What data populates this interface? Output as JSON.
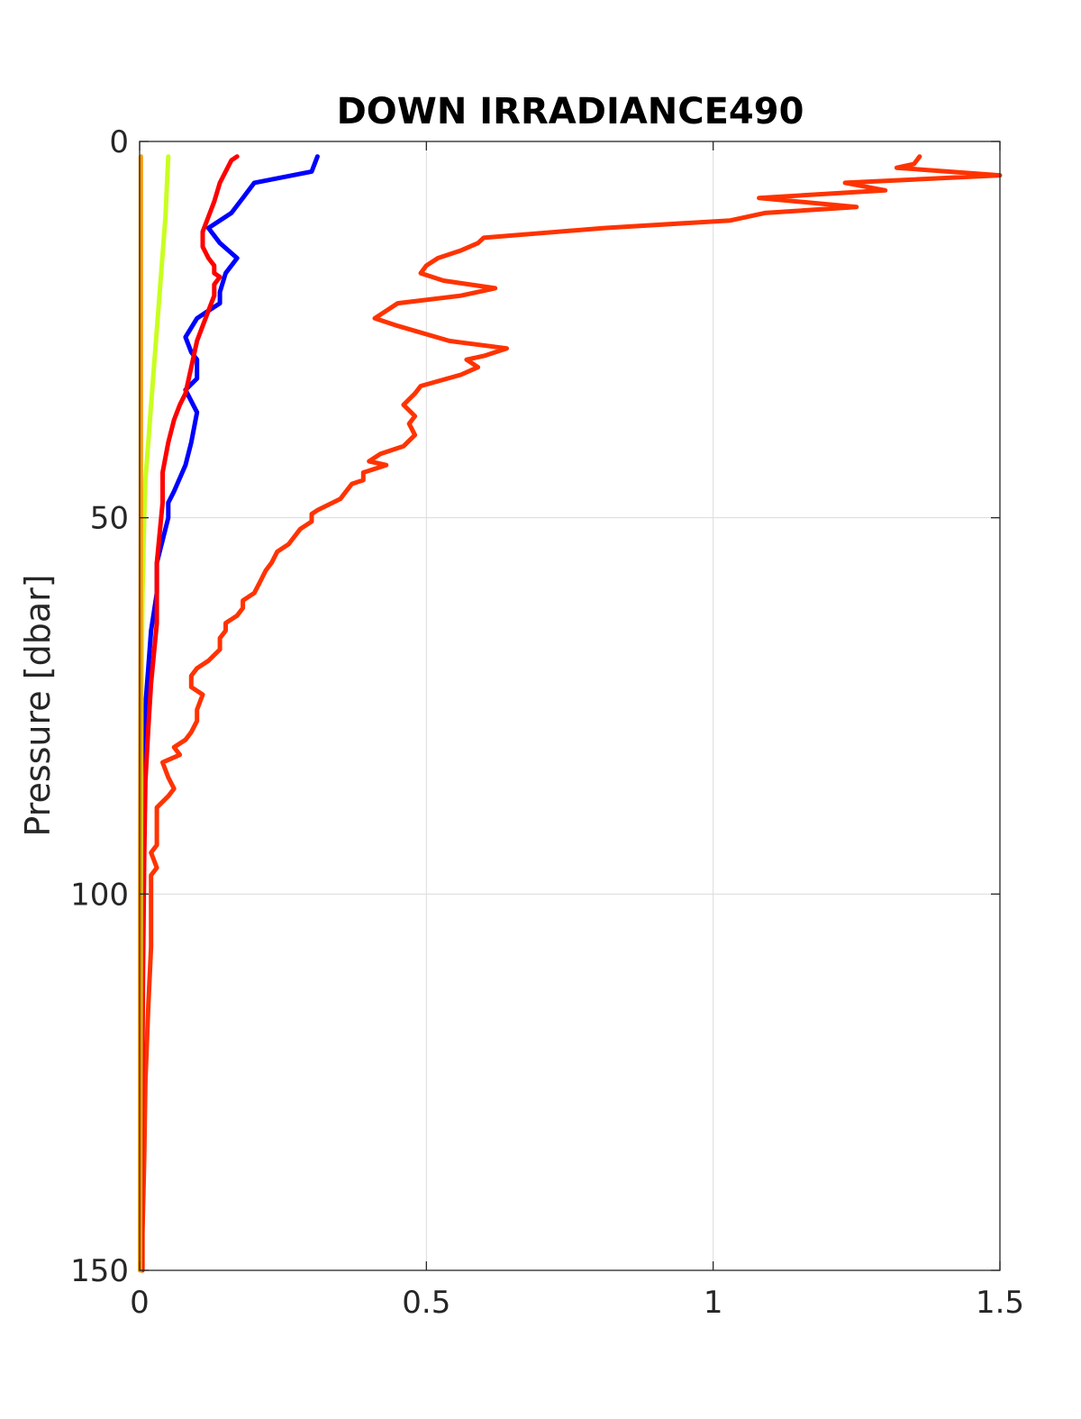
{
  "chart_data": {
    "type": "line",
    "title": "DOWN IRRADIANCE490",
    "xlabel": "",
    "ylabel": "Pressure [dbar]",
    "xlim": [
      0,
      1.5
    ],
    "ylim": [
      0,
      150
    ],
    "y_reversed": true,
    "grid": true,
    "x_ticks": [
      "0",
      "0.5",
      "1",
      "1.5"
    ],
    "y_ticks": [
      "0",
      "50",
      "100",
      "150"
    ],
    "series": [
      {
        "color": "#ff3300",
        "points": [
          [
            1.36,
            2
          ],
          [
            1.35,
            3
          ],
          [
            1.32,
            3.5
          ],
          [
            1.5,
            4.5
          ],
          [
            1.23,
            5.5
          ],
          [
            1.3,
            6.5
          ],
          [
            1.08,
            7.5
          ],
          [
            1.25,
            8.7
          ],
          [
            1.09,
            9.5
          ],
          [
            1.03,
            10.5
          ],
          [
            0.81,
            11.5
          ],
          [
            0.6,
            12.8
          ],
          [
            0.59,
            13.5
          ],
          [
            0.56,
            14.5
          ],
          [
            0.52,
            15.5
          ],
          [
            0.5,
            16.5
          ],
          [
            0.49,
            17.5
          ],
          [
            0.53,
            18.5
          ],
          [
            0.62,
            19.5
          ],
          [
            0.56,
            20.5
          ],
          [
            0.45,
            21.5
          ],
          [
            0.41,
            23.5
          ],
          [
            0.45,
            24.5
          ],
          [
            0.54,
            26.5
          ],
          [
            0.64,
            27.5
          ],
          [
            0.6,
            28.5
          ],
          [
            0.57,
            29
          ],
          [
            0.59,
            30
          ],
          [
            0.56,
            31
          ],
          [
            0.49,
            32.5
          ],
          [
            0.48,
            33.5
          ],
          [
            0.46,
            35
          ],
          [
            0.48,
            36.5
          ],
          [
            0.47,
            37.5
          ],
          [
            0.48,
            39
          ],
          [
            0.46,
            40.5
          ],
          [
            0.42,
            41.5
          ],
          [
            0.4,
            42.5
          ],
          [
            0.43,
            43
          ],
          [
            0.39,
            44
          ],
          [
            0.39,
            45
          ],
          [
            0.37,
            45.5
          ],
          [
            0.36,
            46.5
          ],
          [
            0.35,
            47.5
          ],
          [
            0.31,
            49
          ],
          [
            0.3,
            49.5
          ],
          [
            0.3,
            50.5
          ],
          [
            0.28,
            51.5
          ],
          [
            0.27,
            52.5
          ],
          [
            0.26,
            53.5
          ],
          [
            0.24,
            54.5
          ],
          [
            0.23,
            56
          ],
          [
            0.22,
            57
          ],
          [
            0.21,
            58.5
          ],
          [
            0.2,
            60
          ],
          [
            0.18,
            61
          ],
          [
            0.18,
            62
          ],
          [
            0.17,
            63
          ],
          [
            0.15,
            64
          ],
          [
            0.15,
            65
          ],
          [
            0.14,
            66
          ],
          [
            0.14,
            67.5
          ],
          [
            0.12,
            69
          ],
          [
            0.1,
            70
          ],
          [
            0.09,
            71
          ],
          [
            0.09,
            72.5
          ],
          [
            0.11,
            73.5
          ],
          [
            0.1,
            75.5
          ],
          [
            0.1,
            77
          ],
          [
            0.09,
            78.5
          ],
          [
            0.08,
            79.5
          ],
          [
            0.06,
            80.5
          ],
          [
            0.07,
            81.5
          ],
          [
            0.04,
            82.5
          ],
          [
            0.05,
            84.5
          ],
          [
            0.06,
            86
          ],
          [
            0.05,
            87
          ],
          [
            0.03,
            88.5
          ],
          [
            0.03,
            90.5
          ],
          [
            0.03,
            92
          ],
          [
            0.03,
            93.5
          ],
          [
            0.02,
            94.5
          ],
          [
            0.03,
            96.5
          ],
          [
            0.02,
            97.5
          ],
          [
            0.02,
            99
          ],
          [
            0.02,
            101
          ],
          [
            0.02,
            103
          ],
          [
            0.02,
            107
          ],
          [
            0.015,
            115
          ],
          [
            0.01,
            125
          ],
          [
            0.008,
            135
          ],
          [
            0.005,
            145
          ],
          [
            0.005,
            150
          ]
        ]
      },
      {
        "color": "#0000ff",
        "points": [
          [
            0.31,
            2
          ],
          [
            0.3,
            4
          ],
          [
            0.2,
            5.5
          ],
          [
            0.18,
            7.5
          ],
          [
            0.16,
            9.5
          ],
          [
            0.12,
            11.5
          ],
          [
            0.14,
            13.5
          ],
          [
            0.17,
            15.5
          ],
          [
            0.15,
            17.5
          ],
          [
            0.14,
            20
          ],
          [
            0.14,
            21.5
          ],
          [
            0.12,
            22.5
          ],
          [
            0.1,
            23.5
          ],
          [
            0.08,
            26
          ],
          [
            0.09,
            28
          ],
          [
            0.1,
            29
          ],
          [
            0.1,
            31.5
          ],
          [
            0.08,
            33
          ],
          [
            0.1,
            36
          ],
          [
            0.09,
            40
          ],
          [
            0.08,
            43
          ],
          [
            0.06,
            46.5
          ],
          [
            0.05,
            48
          ],
          [
            0.05,
            50
          ],
          [
            0.04,
            53
          ],
          [
            0.03,
            56
          ],
          [
            0.03,
            60
          ],
          [
            0.02,
            65
          ],
          [
            0.015,
            70
          ],
          [
            0.01,
            75
          ],
          [
            0.005,
            85
          ],
          [
            0.003,
            100
          ],
          [
            0.002,
            120
          ],
          [
            0.001,
            150
          ]
        ]
      },
      {
        "color": "#ff0000",
        "points": [
          [
            0.17,
            2
          ],
          [
            0.16,
            2.5
          ],
          [
            0.15,
            4
          ],
          [
            0.14,
            5.5
          ],
          [
            0.13,
            8
          ],
          [
            0.12,
            10
          ],
          [
            0.11,
            12
          ],
          [
            0.11,
            14
          ],
          [
            0.12,
            15.5
          ],
          [
            0.13,
            16.5
          ],
          [
            0.13,
            17.5
          ],
          [
            0.14,
            18
          ],
          [
            0.13,
            19
          ],
          [
            0.13,
            20.5
          ],
          [
            0.12,
            22.5
          ],
          [
            0.11,
            24.5
          ],
          [
            0.1,
            26.5
          ],
          [
            0.09,
            30
          ],
          [
            0.08,
            33.5
          ],
          [
            0.07,
            35
          ],
          [
            0.06,
            37
          ],
          [
            0.05,
            40
          ],
          [
            0.04,
            44
          ],
          [
            0.04,
            48
          ],
          [
            0.035,
            52
          ],
          [
            0.03,
            56
          ],
          [
            0.03,
            60
          ],
          [
            0.03,
            64
          ],
          [
            0.025,
            68
          ],
          [
            0.02,
            72
          ],
          [
            0.015,
            78
          ],
          [
            0.01,
            85
          ],
          [
            0.008,
            95
          ],
          [
            0.006,
            110
          ],
          [
            0.004,
            130
          ],
          [
            0.003,
            150
          ]
        ]
      },
      {
        "color": "#c8ff1e",
        "points": [
          [
            0.05,
            2
          ],
          [
            0.048,
            5
          ],
          [
            0.045,
            10
          ],
          [
            0.04,
            15
          ],
          [
            0.035,
            20
          ],
          [
            0.03,
            25
          ],
          [
            0.025,
            30
          ],
          [
            0.02,
            35
          ],
          [
            0.015,
            40
          ],
          [
            0.01,
            45
          ],
          [
            0.008,
            50
          ],
          [
            0.005,
            60
          ],
          [
            0.003,
            75
          ],
          [
            0.002,
            100
          ],
          [
            0.001,
            150
          ]
        ]
      },
      {
        "color": "#ff9900",
        "points": [
          [
            0.002,
            2
          ],
          [
            0.002,
            50
          ],
          [
            0.001,
            100
          ],
          [
            0.001,
            150
          ]
        ]
      }
    ]
  }
}
